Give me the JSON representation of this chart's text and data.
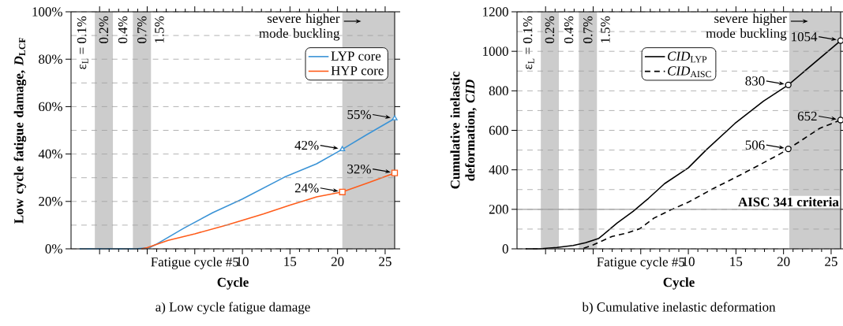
{
  "chart_data": [
    {
      "type": "line",
      "title": "a) Low cycle fatigue damage",
      "xlabel": "Cycle",
      "ylabel": "Low cycle fatigue damage, *D*$_{LCF}$",
      "xlim": [
        -8,
        26
      ],
      "xticks": [
        {
          "value": -5,
          "label": null
        },
        {
          "value": 0,
          "label": null
        },
        {
          "value": 5,
          "label": "Fatigue cycle #5"
        },
        10,
        15,
        20,
        25
      ],
      "ylim": [
        0,
        100
      ],
      "yticks": [
        {
          "value": 0,
          "label": "0%"
        },
        {
          "value": 20,
          "label": "20%"
        },
        {
          "value": 40,
          "label": "40%"
        },
        {
          "value": 60,
          "label": "60%"
        },
        {
          "value": 80,
          "label": "80%"
        },
        {
          "value": 100,
          "label": "100%"
        }
      ],
      "grid": "y",
      "legend": "top right",
      "series": [
        {
          "name": "LYP core",
          "color": "#3a93d6",
          "x": [
            -7.1,
            -1.2,
            0.25,
            0.9,
            3.8,
            6.9,
            10,
            14.4,
            17.8,
            20.5,
            23,
            26
          ],
          "values": [
            0,
            0,
            0.5,
            1.8,
            8.6,
            15.3,
            21,
            30.2,
            35.9,
            42,
            48,
            55
          ]
        },
        {
          "name": "HYP core",
          "color": "#ff5c1a",
          "x": [
            -0.6,
            0,
            2.2,
            5,
            8.3,
            12.2,
            15,
            17.8,
            20.5,
            23.3,
            26
          ],
          "values": [
            0,
            0.5,
            3.6,
            6.3,
            10,
            14.7,
            18.4,
            21.9,
            24,
            28,
            32
          ]
        },
        {
          "type": "scatter",
          "color": "#3a93d6",
          "marker": "triangle",
          "x": [
            20.5,
            26
          ],
          "values": [
            42,
            55
          ],
          "value_labels": [
            "42%",
            "55%"
          ]
        },
        {
          "type": "scatter",
          "color": "#ff5c1a",
          "marker": "square",
          "x": [
            20.5,
            26
          ],
          "values": [
            24,
            32
          ],
          "value_labels": [
            "24%",
            "32%"
          ]
        }
      ],
      "bands": [
        {
          "axis": "x",
          "from": -5.5,
          "to": -3.6,
          "color": "#cccccc"
        },
        {
          "axis": "x",
          "from": -1.5,
          "to": 0.4,
          "color": "#cccccc"
        },
        {
          "axis": "x",
          "from": 20.5,
          "to": 26,
          "color": "#cccccc",
          "label": "severe higher mode buckling"
        }
      ],
      "annotations": [
        "ε$_{L}$ = 0.1%",
        "0.2%",
        "0.4%",
        "0.7%",
        "1.5%"
      ]
    },
    {
      "type": "line",
      "title": "b) Cumulative inelastic deformation",
      "xlabel": "Cycle",
      "ylabel": "Cumulative inelastic deformation, *CID*",
      "xlim": [
        -8,
        26
      ],
      "xticks": [
        {
          "value": -5,
          "label": null
        },
        {
          "value": 0,
          "label": null
        },
        {
          "value": 5,
          "label": "Fatigue cycle #5"
        },
        10,
        15,
        20,
        25
      ],
      "ylim": [
        0,
        1200
      ],
      "yticks": [
        0,
        200,
        400,
        600,
        800,
        1000,
        1200
      ],
      "grid": "y",
      "legend": "top",
      "series": [
        {
          "name": "*CID*$_{LYP}$",
          "color": "#000000",
          "line_style": "solid",
          "x": [
            -7.1,
            -5.7,
            -3.8,
            -2.1,
            -0.8,
            0.6,
            2.5,
            4.2,
            5.8,
            7.5,
            10,
            11.9,
            14.9,
            17.9,
            20.5,
            26
          ],
          "values": [
            0,
            0,
            7,
            17,
            31,
            53,
            130,
            190,
            255,
            330,
            410,
            502,
            635,
            748,
            830,
            1054
          ]
        },
        {
          "name": "*CID*$_{AISC}$",
          "color": "#000000",
          "line_style": "dashed",
          "x": [
            -1,
            0,
            2,
            3.4,
            4.9,
            6.4,
            8.1,
            10,
            12.5,
            15.5,
            19.4,
            20.5,
            22.1,
            23.8,
            26
          ],
          "values": [
            3,
            20,
            63,
            78,
            102,
            156,
            196,
            236,
            302,
            375,
            474,
            506,
            556,
            610,
            652
          ]
        },
        {
          "type": "scatter",
          "color": "#000000",
          "marker": "circle",
          "x": [
            20.5,
            26
          ],
          "values": [
            830,
            1054
          ],
          "value_labels": [
            "830",
            "1054"
          ]
        },
        {
          "type": "scatter",
          "color": "#000000",
          "marker": "circle",
          "x": [
            20.5,
            26
          ],
          "values": [
            506,
            652
          ],
          "value_labels": [
            "506",
            "652"
          ]
        }
      ],
      "ref_lines": [
        {
          "axis": "y",
          "value": 200,
          "label": "AISC 341 criteria",
          "color": "#a0a0a0"
        }
      ],
      "bands": [
        {
          "axis": "x",
          "from": -5.5,
          "to": -3.6,
          "color": "#cccccc"
        },
        {
          "axis": "x",
          "from": -1.5,
          "to": 0.4,
          "color": "#cccccc"
        },
        {
          "axis": "x",
          "from": 20.6,
          "to": 26,
          "color": "#cccccc",
          "label": "severe higher mode buckling"
        }
      ],
      "annotations": [
        "ε$_{L}$ = 0.1%",
        "0.2%",
        "0.4%",
        "0.7%",
        "1.5%"
      ]
    }
  ]
}
